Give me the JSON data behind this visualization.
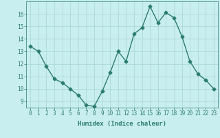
{
  "x": [
    0,
    1,
    2,
    3,
    4,
    5,
    6,
    7,
    8,
    9,
    10,
    11,
    12,
    13,
    14,
    15,
    16,
    17,
    18,
    19,
    20,
    21,
    22,
    23
  ],
  "y": [
    13.4,
    13.0,
    11.8,
    10.8,
    10.5,
    10.0,
    9.5,
    8.7,
    8.6,
    9.8,
    11.3,
    13.0,
    12.2,
    14.4,
    14.9,
    16.6,
    15.3,
    16.1,
    15.7,
    14.2,
    12.2,
    11.2,
    10.7,
    10.0
  ],
  "line_color": "#2d7d6e",
  "marker": "D",
  "markersize": 2.5,
  "linewidth": 1.0,
  "bg_color": "#c8eef0",
  "grid_color": "#a8d8d0",
  "xlabel": "Humidex (Indice chaleur)",
  "xlim": [
    -0.5,
    23.5
  ],
  "ylim": [
    8.5,
    17.0
  ],
  "yticks": [
    9,
    10,
    11,
    12,
    13,
    14,
    15,
    16
  ],
  "xticks": [
    0,
    1,
    2,
    3,
    4,
    5,
    6,
    7,
    8,
    9,
    10,
    11,
    12,
    13,
    14,
    15,
    16,
    17,
    18,
    19,
    20,
    21,
    22,
    23
  ],
  "xlabel_fontsize": 6.5,
  "tick_fontsize": 5.5
}
